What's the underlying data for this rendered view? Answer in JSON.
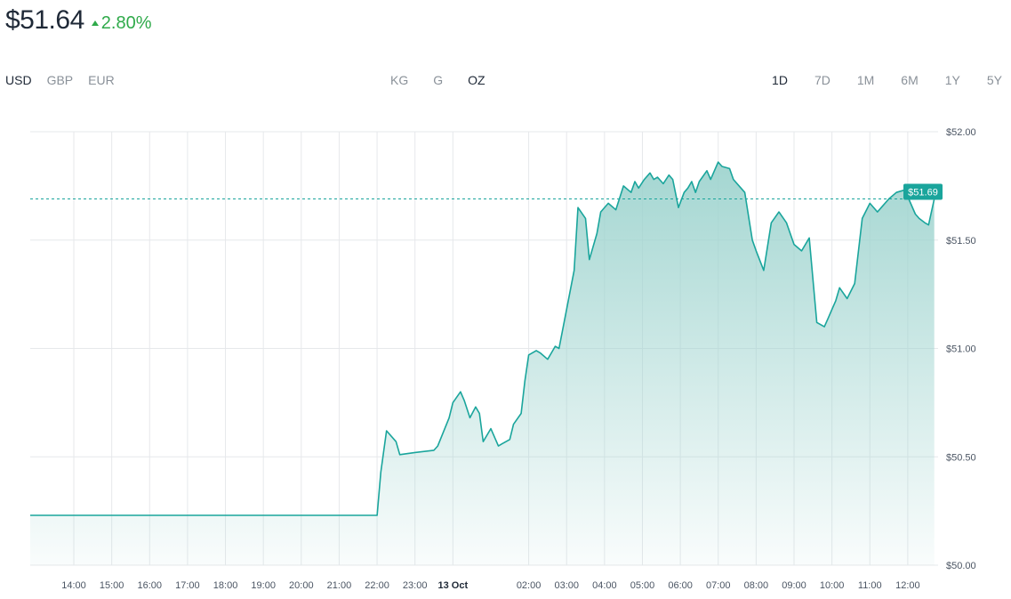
{
  "header": {
    "price": "$51.64",
    "change": "2.80%",
    "change_icon": "triangle-up-icon"
  },
  "currencies": [
    {
      "label": "USD",
      "active": true
    },
    {
      "label": "GBP",
      "active": false
    },
    {
      "label": "EUR",
      "active": false
    }
  ],
  "units": [
    {
      "label": "KG",
      "active": false
    },
    {
      "label": "G",
      "active": false
    },
    {
      "label": "OZ",
      "active": true
    }
  ],
  "ranges": [
    {
      "label": "1D",
      "active": true
    },
    {
      "label": "7D",
      "active": false
    },
    {
      "label": "1M",
      "active": false
    },
    {
      "label": "6M",
      "active": false
    },
    {
      "label": "1Y",
      "active": false
    },
    {
      "label": "5Y",
      "active": false
    }
  ],
  "colors": {
    "line": "#1aa59c",
    "fill": "#9fd4cf",
    "up": "#2faa4a",
    "grid": "#e6e8eb"
  },
  "chart_data": {
    "type": "area",
    "ylim": [
      50.0,
      52.0
    ],
    "y_ticks": [
      "$50.00",
      "$50.50",
      "$51.00",
      "$51.50",
      "$52.00"
    ],
    "y_tick_values": [
      50.0,
      50.5,
      51.0,
      51.5,
      52.0
    ],
    "x_ticks": [
      "14:00",
      "15:00",
      "16:00",
      "17:00",
      "18:00",
      "19:00",
      "20:00",
      "21:00",
      "22:00",
      "23:00",
      "13 Oct",
      "02:00",
      "03:00",
      "04:00",
      "05:00",
      "06:00",
      "07:00",
      "08:00",
      "09:00",
      "10:00",
      "11:00",
      "12:00"
    ],
    "x_tick_hours": [
      14,
      15,
      16,
      17,
      18,
      19,
      20,
      21,
      22,
      23,
      24,
      26,
      27,
      28,
      29,
      30,
      31,
      32,
      33,
      34,
      35,
      36
    ],
    "x_range_hours": [
      12.85,
      36.8
    ],
    "last_value": 51.69,
    "last_label": "$51.69",
    "series": [
      {
        "x": [
          12.85,
          22.0,
          22.1,
          22.25,
          22.5,
          22.6,
          23.0,
          23.5,
          23.6,
          23.9,
          24.0,
          24.2,
          24.3,
          24.45,
          24.6,
          24.7,
          24.8,
          25.0,
          25.2,
          25.3,
          25.5,
          25.6,
          25.8,
          25.9,
          26.0,
          26.2,
          26.3,
          26.5,
          26.6,
          26.7,
          26.8,
          27.0,
          27.2,
          27.3,
          27.5,
          27.6,
          27.8,
          27.9,
          28.1,
          28.3,
          28.5,
          28.7,
          28.8,
          28.9,
          29.05,
          29.2,
          29.3,
          29.4,
          29.55,
          29.7,
          29.8,
          29.95,
          30.1,
          30.2,
          30.3,
          30.4,
          30.5,
          30.7,
          30.8,
          31.0,
          31.1,
          31.3,
          31.4,
          31.6,
          31.7,
          31.9,
          32.0,
          32.2,
          32.4,
          32.6,
          32.8,
          33.0,
          33.2,
          33.4,
          33.6,
          33.8,
          33.9,
          34.0,
          34.1,
          34.2,
          34.4,
          34.6,
          34.8,
          35.0,
          35.2,
          35.3,
          35.5,
          35.7,
          35.9,
          36.0,
          36.2,
          36.3,
          36.45,
          36.55,
          36.7
        ],
        "values": [
          50.23,
          50.23,
          50.43,
          50.62,
          50.57,
          50.51,
          50.52,
          50.53,
          50.55,
          50.68,
          50.75,
          50.8,
          50.76,
          50.68,
          50.73,
          50.7,
          50.57,
          50.63,
          50.55,
          50.56,
          50.58,
          50.65,
          50.7,
          50.85,
          50.97,
          50.99,
          50.98,
          50.95,
          50.98,
          51.01,
          51.0,
          51.18,
          51.36,
          51.65,
          51.6,
          51.41,
          51.53,
          51.63,
          51.67,
          51.64,
          51.75,
          51.72,
          51.77,
          51.74,
          51.78,
          51.81,
          51.78,
          51.79,
          51.76,
          51.8,
          51.78,
          51.65,
          51.72,
          51.74,
          51.77,
          51.72,
          51.77,
          51.82,
          51.78,
          51.86,
          51.84,
          51.83,
          51.78,
          51.74,
          51.72,
          51.5,
          51.45,
          51.36,
          51.58,
          51.63,
          51.58,
          51.48,
          51.45,
          51.51,
          51.12,
          51.1,
          51.14,
          51.18,
          51.22,
          51.28,
          51.23,
          51.3,
          51.6,
          51.67,
          51.63,
          51.65,
          51.69,
          51.72,
          51.73,
          51.7,
          51.62,
          51.6,
          51.58,
          51.57,
          51.69
        ]
      }
    ]
  }
}
